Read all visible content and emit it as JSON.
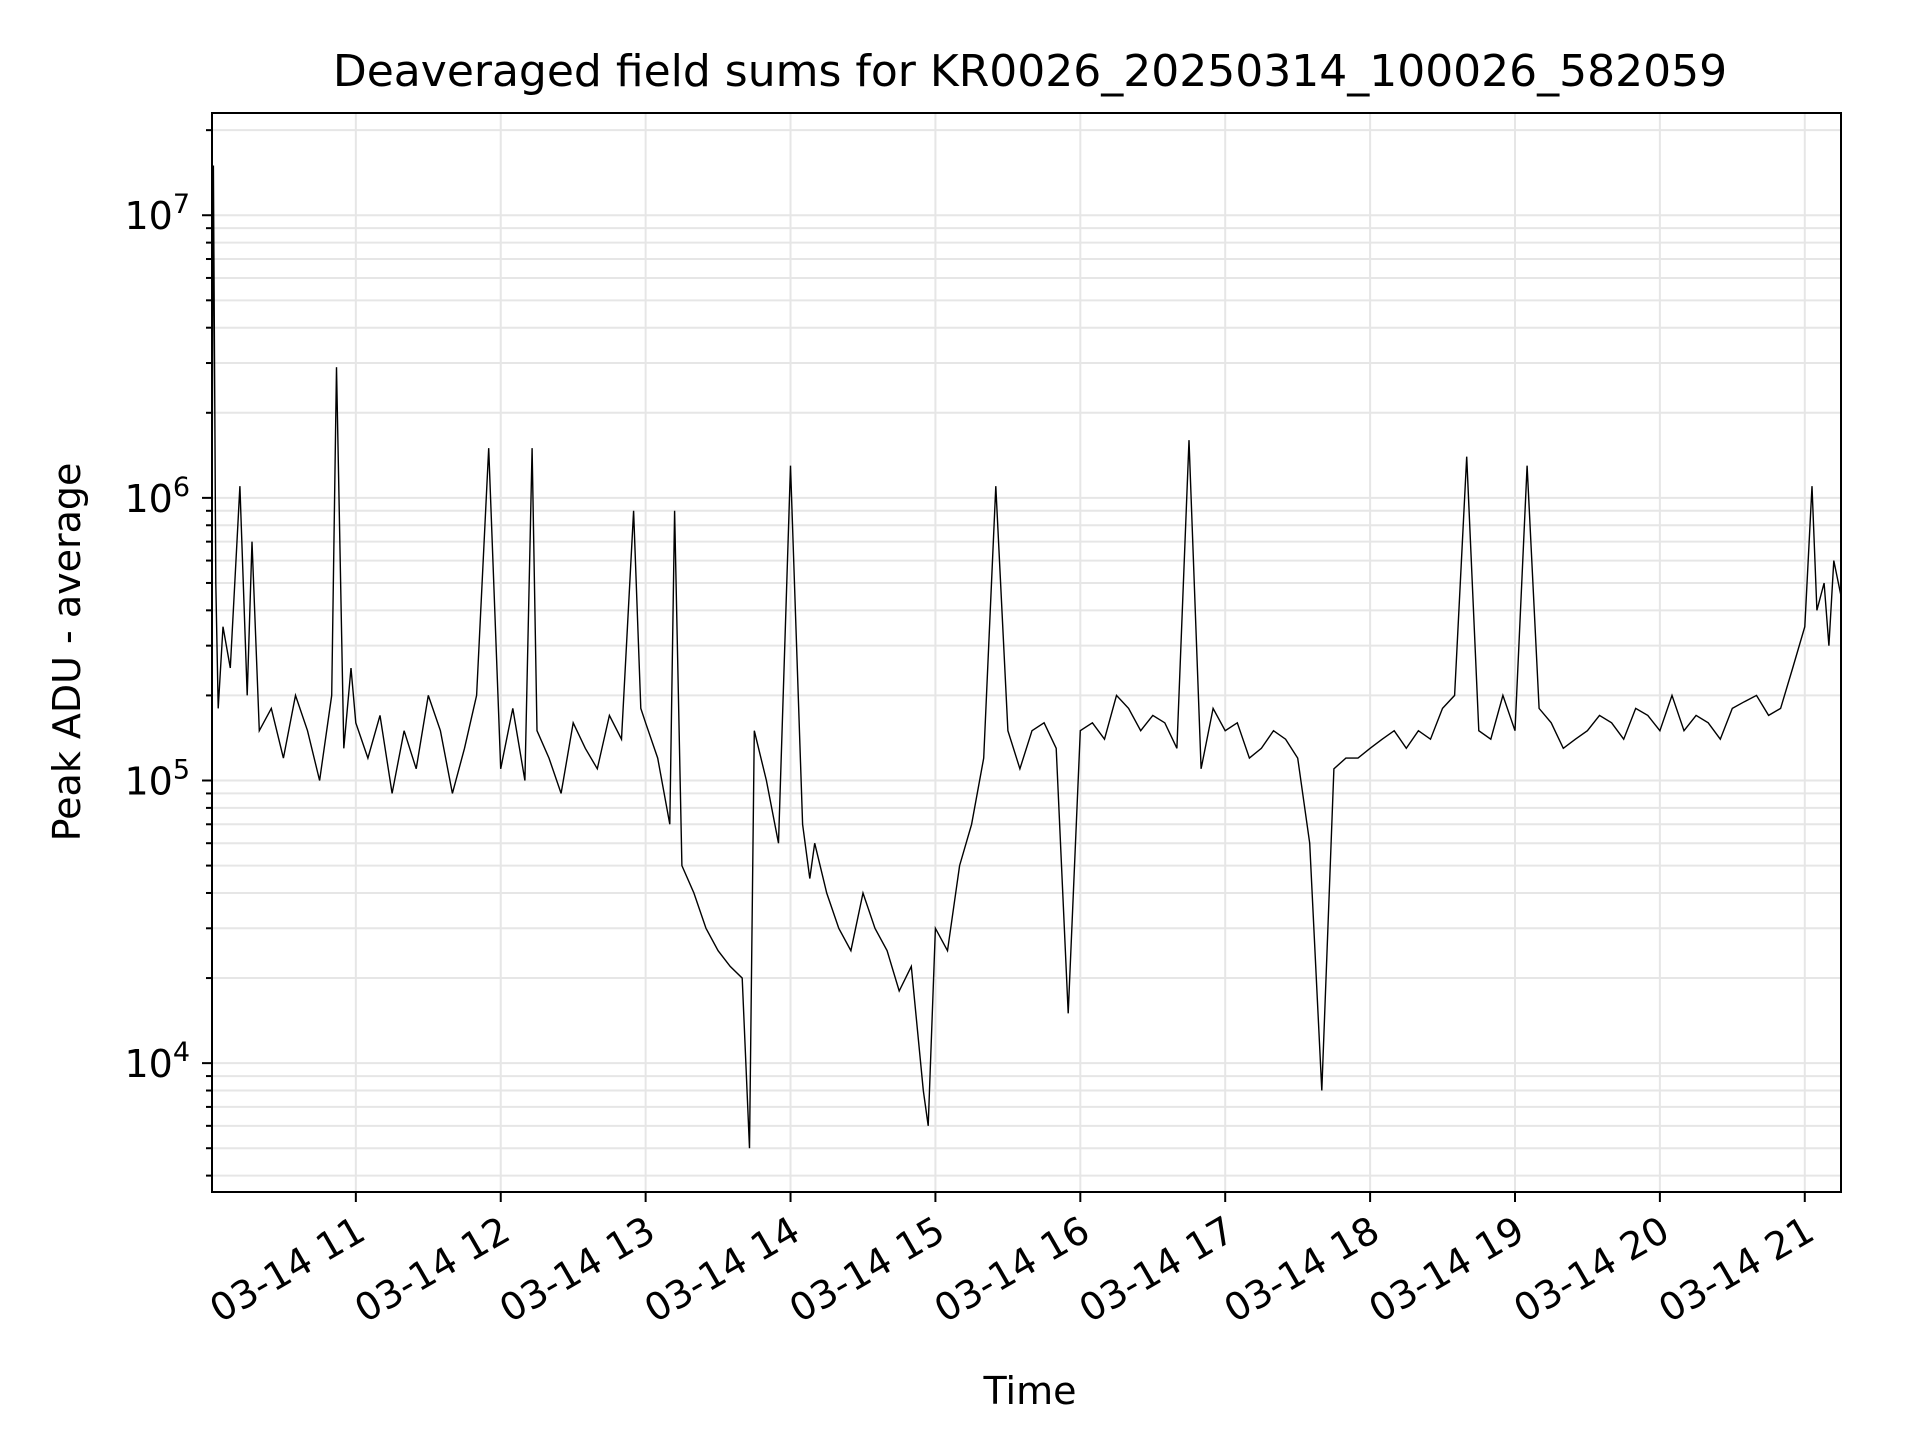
{
  "chart_data": {
    "type": "line",
    "title": "Deaveraged field sums for KR0026_20250314_100026_582059",
    "xlabel": "Time",
    "ylabel": "Peak ADU - average",
    "yscale": "log",
    "ylim": [
      3500,
      23000000
    ],
    "y_ticks": [
      {
        "value": 10000,
        "base": "10",
        "exp": "4"
      },
      {
        "value": 100000,
        "base": "10",
        "exp": "5"
      },
      {
        "value": 1000000,
        "base": "10",
        "exp": "6"
      },
      {
        "value": 10000000,
        "base": "10",
        "exp": "7"
      }
    ],
    "xlim": [
      "2025-03-14T10:00:26",
      "2025-03-14T21:15:00"
    ],
    "x_ticks": [
      {
        "value": "2025-03-14T11:00",
        "label": "03-14 11"
      },
      {
        "value": "2025-03-14T12:00",
        "label": "03-14 12"
      },
      {
        "value": "2025-03-14T13:00",
        "label": "03-14 13"
      },
      {
        "value": "2025-03-14T14:00",
        "label": "03-14 14"
      },
      {
        "value": "2025-03-14T15:00",
        "label": "03-14 15"
      },
      {
        "value": "2025-03-14T16:00",
        "label": "03-14 16"
      },
      {
        "value": "2025-03-14T17:00",
        "label": "03-14 17"
      },
      {
        "value": "2025-03-14T18:00",
        "label": "03-14 18"
      },
      {
        "value": "2025-03-14T19:00",
        "label": "03-14 19"
      },
      {
        "value": "2025-03-14T20:00",
        "label": "03-14 20"
      },
      {
        "value": "2025-03-14T21:00",
        "label": "03-14 21"
      }
    ],
    "grid": true,
    "line_color": "#000000",
    "grid_color": "#e6e6e6",
    "series": [
      {
        "x": [
          "2025-03-14T10:00:26",
          "2025-03-14T10:01",
          "2025-03-14T10:02",
          "2025-03-14T10:03",
          "2025-03-14T10:05",
          "2025-03-14T10:08",
          "2025-03-14T10:12",
          "2025-03-14T10:15",
          "2025-03-14T10:17",
          "2025-03-14T10:20",
          "2025-03-14T10:25",
          "2025-03-14T10:30",
          "2025-03-14T10:35",
          "2025-03-14T10:40",
          "2025-03-14T10:45",
          "2025-03-14T10:50",
          "2025-03-14T10:52",
          "2025-03-14T10:55",
          "2025-03-14T10:58",
          "2025-03-14T11:00",
          "2025-03-14T11:05",
          "2025-03-14T11:10",
          "2025-03-14T11:15",
          "2025-03-14T11:20",
          "2025-03-14T11:25",
          "2025-03-14T11:30",
          "2025-03-14T11:35",
          "2025-03-14T11:40",
          "2025-03-14T11:45",
          "2025-03-14T11:50",
          "2025-03-14T11:55",
          "2025-03-14T12:00",
          "2025-03-14T12:05",
          "2025-03-14T12:10",
          "2025-03-14T12:13",
          "2025-03-14T12:15",
          "2025-03-14T12:20",
          "2025-03-14T12:25",
          "2025-03-14T12:30",
          "2025-03-14T12:35",
          "2025-03-14T12:40",
          "2025-03-14T12:45",
          "2025-03-14T12:50",
          "2025-03-14T12:55",
          "2025-03-14T12:58",
          "2025-03-14T13:00",
          "2025-03-14T13:05",
          "2025-03-14T13:10",
          "2025-03-14T13:12",
          "2025-03-14T13:15",
          "2025-03-14T13:20",
          "2025-03-14T13:25",
          "2025-03-14T13:30",
          "2025-03-14T13:35",
          "2025-03-14T13:40",
          "2025-03-14T13:43",
          "2025-03-14T13:45",
          "2025-03-14T13:50",
          "2025-03-14T13:55",
          "2025-03-14T14:00",
          "2025-03-14T14:05",
          "2025-03-14T14:08",
          "2025-03-14T14:10",
          "2025-03-14T14:15",
          "2025-03-14T14:20",
          "2025-03-14T14:25",
          "2025-03-14T14:30",
          "2025-03-14T14:35",
          "2025-03-14T14:40",
          "2025-03-14T14:45",
          "2025-03-14T14:50",
          "2025-03-14T14:55",
          "2025-03-14T14:57",
          "2025-03-14T15:00",
          "2025-03-14T15:05",
          "2025-03-14T15:10",
          "2025-03-14T15:15",
          "2025-03-14T15:20",
          "2025-03-14T15:25",
          "2025-03-14T15:30",
          "2025-03-14T15:35",
          "2025-03-14T15:40",
          "2025-03-14T15:45",
          "2025-03-14T15:50",
          "2025-03-14T15:55",
          "2025-03-14T16:00",
          "2025-03-14T16:05",
          "2025-03-14T16:10",
          "2025-03-14T16:15",
          "2025-03-14T16:20",
          "2025-03-14T16:25",
          "2025-03-14T16:30",
          "2025-03-14T16:35",
          "2025-03-14T16:40",
          "2025-03-14T16:45",
          "2025-03-14T16:50",
          "2025-03-14T16:55",
          "2025-03-14T17:00",
          "2025-03-14T17:05",
          "2025-03-14T17:10",
          "2025-03-14T17:15",
          "2025-03-14T17:20",
          "2025-03-14T17:25",
          "2025-03-14T17:30",
          "2025-03-14T17:35",
          "2025-03-14T17:40",
          "2025-03-14T17:45",
          "2025-03-14T17:50",
          "2025-03-14T17:55",
          "2025-03-14T18:00",
          "2025-03-14T18:05",
          "2025-03-14T18:10",
          "2025-03-14T18:15",
          "2025-03-14T18:20",
          "2025-03-14T18:25",
          "2025-03-14T18:30",
          "2025-03-14T18:35",
          "2025-03-14T18:40",
          "2025-03-14T18:45",
          "2025-03-14T18:50",
          "2025-03-14T18:55",
          "2025-03-14T19:00",
          "2025-03-14T19:05",
          "2025-03-14T19:10",
          "2025-03-14T19:15",
          "2025-03-14T19:20",
          "2025-03-14T19:25",
          "2025-03-14T19:30",
          "2025-03-14T19:35",
          "2025-03-14T19:40",
          "2025-03-14T19:45",
          "2025-03-14T19:50",
          "2025-03-14T19:55",
          "2025-03-14T20:00",
          "2025-03-14T20:05",
          "2025-03-14T20:10",
          "2025-03-14T20:15",
          "2025-03-14T20:20",
          "2025-03-14T20:25",
          "2025-03-14T20:30",
          "2025-03-14T20:35",
          "2025-03-14T20:40",
          "2025-03-14T20:45",
          "2025-03-14T20:50",
          "2025-03-14T20:55",
          "2025-03-14T21:00",
          "2025-03-14T21:03",
          "2025-03-14T21:05",
          "2025-03-14T21:08",
          "2025-03-14T21:10",
          "2025-03-14T21:12",
          "2025-03-14T21:15"
        ],
        "y": [
          900000,
          15000000,
          500000,
          180000,
          350000,
          250000,
          1100000,
          200000,
          700000,
          150000,
          180000,
          120000,
          200000,
          150000,
          100000,
          200000,
          2900000,
          130000,
          250000,
          160000,
          120000,
          170000,
          90000,
          150000,
          110000,
          200000,
          150000,
          90000,
          130000,
          200000,
          1500000,
          110000,
          180000,
          100000,
          1500000,
          150000,
          120000,
          90000,
          160000,
          130000,
          110000,
          170000,
          140000,
          900000,
          180000,
          160000,
          120000,
          70000,
          900000,
          50000,
          40000,
          30000,
          25000,
          22000,
          20000,
          5000,
          150000,
          100000,
          60000,
          1300000,
          70000,
          45000,
          60000,
          40000,
          30000,
          25000,
          40000,
          30000,
          25000,
          18000,
          22000,
          8000,
          6000,
          30000,
          25000,
          50000,
          70000,
          120000,
          1100000,
          150000,
          110000,
          150000,
          160000,
          130000,
          15000,
          150000,
          160000,
          140000,
          200000,
          180000,
          150000,
          170000,
          160000,
          130000,
          1600000,
          110000,
          180000,
          150000,
          160000,
          120000,
          130000,
          150000,
          140000,
          120000,
          60000,
          8000,
          110000,
          120000,
          120000,
          130000,
          140000,
          150000,
          130000,
          150000,
          140000,
          180000,
          200000,
          1400000,
          150000,
          140000,
          200000,
          150000,
          1300000,
          180000,
          160000,
          130000,
          140000,
          150000,
          170000,
          160000,
          140000,
          180000,
          170000,
          150000,
          200000,
          150000,
          170000,
          160000,
          140000,
          180000,
          190000,
          200000,
          170000,
          180000,
          250000,
          350000,
          1100000,
          400000,
          500000,
          300000,
          600000,
          450000
        ]
      }
    ]
  }
}
